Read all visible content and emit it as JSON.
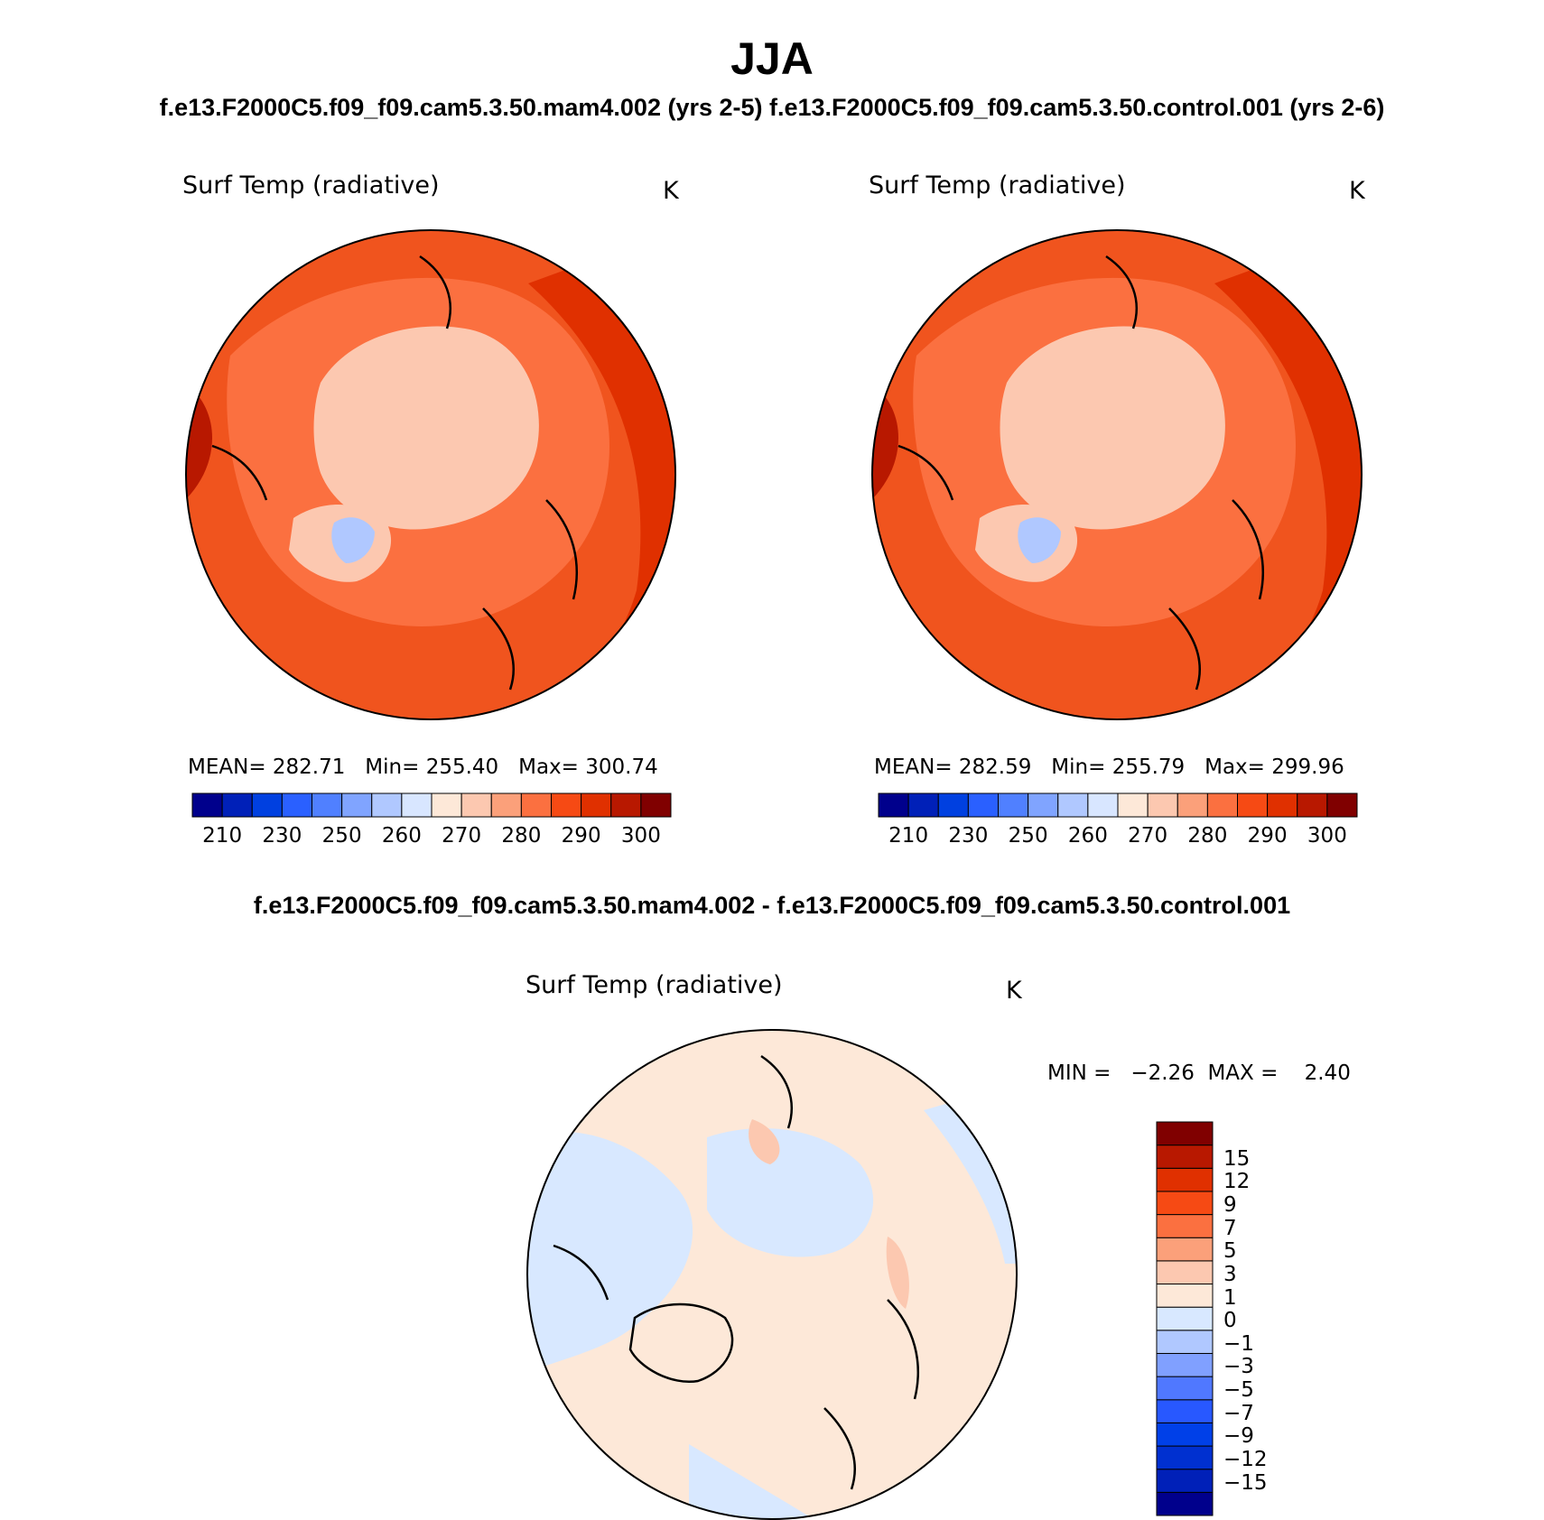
{
  "title": "JJA",
  "case_title": "f.e13.F2000C5.f09_f09.cam5.3.50.mam4.002 (yrs 2-5) f.e13.F2000C5.f09_f09.cam5.3.50.control.001 (yrs 2-6)",
  "diff_title": "f.e13.F2000C5.f09_f09.cam5.3.50.mam4.002 - f.e13.F2000C5.f09_f09.cam5.3.50.control.001",
  "panels": [
    {
      "variable": "Surf Temp (radiative)",
      "units": "K",
      "stats": "MEAN= 282.71   Min= 255.40   Max= 300.74"
    },
    {
      "variable": "Surf Temp (radiative)",
      "units": "K",
      "stats": "MEAN= 282.59   Min= 255.79   Max= 299.96"
    }
  ],
  "diff_panel": {
    "variable": "Surf Temp (radiative)",
    "units": "K",
    "stats": "MIN =   −2.26  MAX =    2.40"
  },
  "colorbar_abs": {
    "colors": [
      "#00008c",
      "#0020b8",
      "#0040e0",
      "#2a60ff",
      "#5080ff",
      "#80a4ff",
      "#b0c8ff",
      "#d8e6ff",
      "#fde8d8",
      "#fcc8b0",
      "#fba07a",
      "#fb7040",
      "#f64a14",
      "#e03000",
      "#b81800",
      "#800000"
    ],
    "tick_labels": [
      "210",
      "230",
      "250",
      "260",
      "270",
      "280",
      "290",
      "300"
    ]
  },
  "colorbar_diff": {
    "colors": [
      "#00008c",
      "#0020b8",
      "#0030d0",
      "#0040e8",
      "#2858ff",
      "#5078ff",
      "#80a0ff",
      "#b0c8ff",
      "#d8e8ff",
      "#fde8d8",
      "#fcc8b0",
      "#fba07a",
      "#fb7040",
      "#f64a14",
      "#e03000",
      "#b81800",
      "#800000"
    ],
    "tick_labels": [
      "15",
      "12",
      "9",
      "7",
      "5",
      "3",
      "1",
      "0",
      "−1",
      "−3",
      "−5",
      "−7",
      "−9",
      "−12",
      "−15"
    ]
  },
  "map_colors": {
    "ocean_warm": "#f0541e",
    "mid": "#fb7040",
    "ice": "#fcc8b0",
    "cold": "#b0c8ff",
    "hot": "#e03000",
    "hottest": "#b81800",
    "diff_pos": "#fde8d8",
    "diff_neg": "#d8e8ff",
    "diff_pos2": "#fcc8b0"
  }
}
